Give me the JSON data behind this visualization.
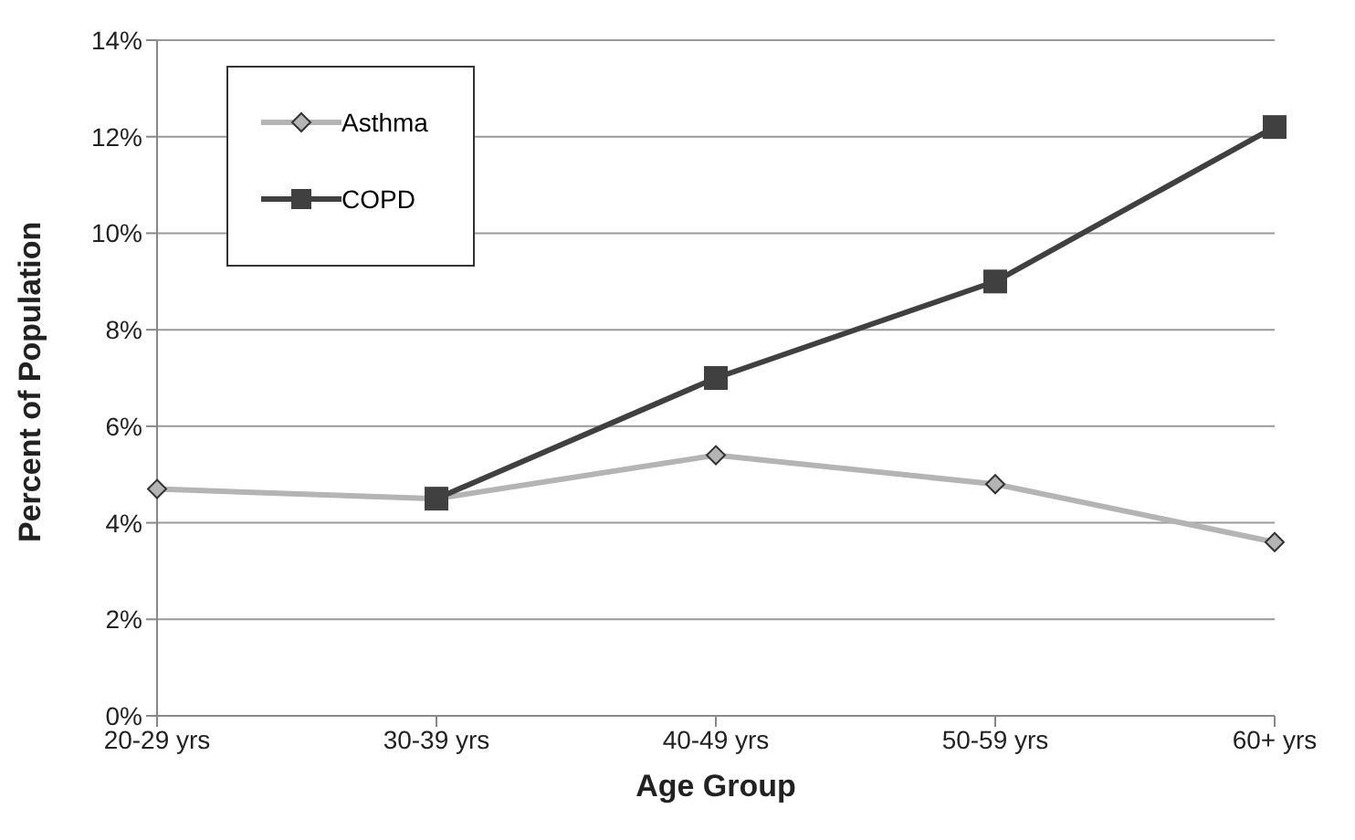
{
  "chart_data": {
    "type": "line",
    "xlabel": "Age Group",
    "ylabel": "Percent of Population",
    "categories": [
      "20-29 yrs",
      "30-39 yrs",
      "40-49 yrs",
      "50-59 yrs",
      "60+ yrs"
    ],
    "series": [
      {
        "name": "Asthma",
        "color": "#b4b4b4",
        "marker": "diamond",
        "values": [
          4.7,
          4.5,
          5.4,
          4.8,
          3.6
        ]
      },
      {
        "name": "COPD",
        "color": "#404040",
        "marker": "square",
        "values": [
          null,
          4.5,
          7.0,
          9.0,
          12.2
        ]
      }
    ],
    "ylim": [
      0,
      14
    ],
    "yticks": [
      {
        "value": 0,
        "label": "0%"
      },
      {
        "value": 2,
        "label": "2%"
      },
      {
        "value": 4,
        "label": "4%"
      },
      {
        "value": 6,
        "label": "6%"
      },
      {
        "value": 8,
        "label": "8%"
      },
      {
        "value": 10,
        "label": "10%"
      },
      {
        "value": 12,
        "label": "12%"
      },
      {
        "value": 14,
        "label": "14%"
      }
    ],
    "grid": "y",
    "legend": "top left",
    "line_style": "solid"
  }
}
